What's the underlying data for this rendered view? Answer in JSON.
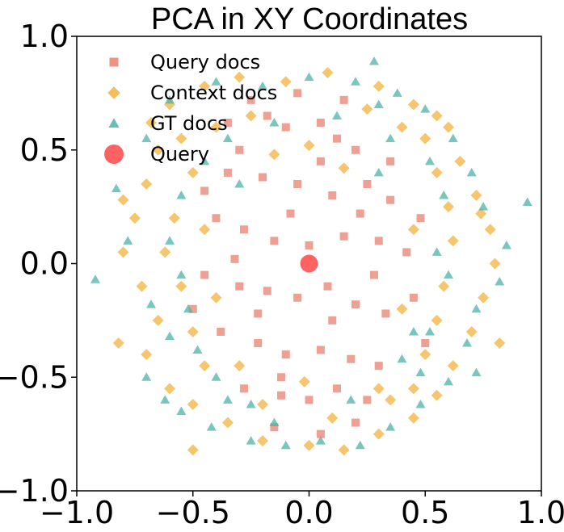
{
  "chart_data": {
    "type": "scatter",
    "title": "PCA in XY Coordinates",
    "xlabel": "",
    "ylabel": "",
    "xlim": [
      -1.0,
      1.0
    ],
    "ylim": [
      -1.0,
      1.0
    ],
    "xticks": [
      -1.0,
      -0.5,
      0.0,
      0.5,
      1.0
    ],
    "yticks": [
      1.0,
      0.5,
      0.0,
      -0.5,
      -1.0
    ],
    "xtick_labels": [
      "−1.0",
      "−0.5",
      "0.0",
      "0.5",
      "1.0"
    ],
    "ytick_labels": [
      "1.0",
      "0.5",
      "0.0",
      "−0.5",
      "−1.0"
    ],
    "grid": false,
    "legend_position": "top-left",
    "series": [
      {
        "name": "Query docs",
        "marker": "square",
        "color": "#e8806f",
        "points": [
          [
            -0.25,
            0.72
          ],
          [
            -0.18,
            0.65
          ],
          [
            -0.1,
            0.6
          ],
          [
            0.05,
            0.62
          ],
          [
            0.12,
            0.55
          ],
          [
            0.2,
            0.5
          ],
          [
            -0.3,
            0.5
          ],
          [
            -0.35,
            0.4
          ],
          [
            -0.2,
            0.38
          ],
          [
            -0.05,
            0.35
          ],
          [
            0.1,
            0.3
          ],
          [
            0.25,
            0.35
          ],
          [
            0.35,
            0.28
          ],
          [
            -0.4,
            0.2
          ],
          [
            -0.28,
            0.15
          ],
          [
            -0.15,
            0.1
          ],
          [
            0.0,
            0.08
          ],
          [
            0.15,
            0.12
          ],
          [
            0.3,
            0.1
          ],
          [
            0.42,
            0.05
          ],
          [
            -0.45,
            -0.05
          ],
          [
            -0.3,
            -0.1
          ],
          [
            -0.18,
            -0.12
          ],
          [
            -0.05,
            -0.15
          ],
          [
            0.08,
            -0.1
          ],
          [
            0.2,
            -0.18
          ],
          [
            0.33,
            -0.22
          ],
          [
            0.45,
            -0.15
          ],
          [
            -0.38,
            -0.3
          ],
          [
            -0.22,
            -0.35
          ],
          [
            -0.1,
            -0.4
          ],
          [
            0.05,
            -0.38
          ],
          [
            0.18,
            -0.42
          ],
          [
            0.3,
            -0.45
          ],
          [
            -0.28,
            -0.55
          ],
          [
            -0.12,
            -0.58
          ],
          [
            0.0,
            -0.6
          ],
          [
            0.12,
            -0.55
          ],
          [
            0.25,
            -0.6
          ],
          [
            -0.15,
            -0.72
          ],
          [
            0.05,
            -0.75
          ],
          [
            0.2,
            -0.7
          ],
          [
            -0.05,
            0.75
          ],
          [
            0.15,
            0.72
          ],
          [
            -0.45,
            0.32
          ],
          [
            0.48,
            0.2
          ],
          [
            -0.5,
            -0.2
          ],
          [
            0.5,
            -0.35
          ],
          [
            0.35,
            0.45
          ],
          [
            -0.35,
            0.62
          ],
          [
            0.1,
            -0.25
          ],
          [
            -0.08,
            0.22
          ],
          [
            0.22,
            0.22
          ],
          [
            -0.22,
            -0.22
          ],
          [
            0.28,
            -0.05
          ],
          [
            -0.32,
            0.02
          ],
          [
            0.05,
            0.45
          ],
          [
            -0.12,
            -0.5
          ]
        ]
      },
      {
        "name": "Context docs",
        "marker": "diamond",
        "color": "#f2b33d",
        "points": [
          [
            -0.6,
            0.7
          ],
          [
            -0.45,
            0.78
          ],
          [
            -0.3,
            0.82
          ],
          [
            -0.1,
            0.8
          ],
          [
            0.08,
            0.84
          ],
          [
            0.3,
            0.78
          ],
          [
            0.45,
            0.7
          ],
          [
            0.55,
            0.65
          ],
          [
            -0.65,
            0.5
          ],
          [
            -0.7,
            0.35
          ],
          [
            -0.75,
            0.2
          ],
          [
            -0.8,
            0.05
          ],
          [
            -0.72,
            -0.1
          ],
          [
            -0.65,
            -0.25
          ],
          [
            -0.7,
            -0.4
          ],
          [
            -0.6,
            -0.55
          ],
          [
            -0.5,
            -0.62
          ],
          [
            -0.35,
            -0.7
          ],
          [
            -0.2,
            -0.78
          ],
          [
            0.0,
            -0.8
          ],
          [
            0.15,
            -0.82
          ],
          [
            0.3,
            -0.75
          ],
          [
            0.45,
            -0.68
          ],
          [
            0.55,
            -0.58
          ],
          [
            0.62,
            -0.45
          ],
          [
            0.7,
            -0.3
          ],
          [
            0.75,
            -0.15
          ],
          [
            0.8,
            0.0
          ],
          [
            0.78,
            0.15
          ],
          [
            0.72,
            0.3
          ],
          [
            0.65,
            0.45
          ],
          [
            -0.55,
            0.55
          ],
          [
            -0.5,
            0.4
          ],
          [
            -0.58,
            0.2
          ],
          [
            -0.62,
            0.05
          ],
          [
            -0.55,
            -0.1
          ],
          [
            -0.5,
            -0.3
          ],
          [
            -0.45,
            -0.45
          ],
          [
            0.5,
            0.55
          ],
          [
            0.55,
            0.4
          ],
          [
            0.6,
            0.25
          ],
          [
            0.62,
            0.1
          ],
          [
            0.58,
            -0.1
          ],
          [
            0.55,
            -0.25
          ],
          [
            0.5,
            -0.4
          ],
          [
            0.45,
            -0.55
          ],
          [
            -0.4,
            0.6
          ],
          [
            0.4,
            0.6
          ],
          [
            -0.25,
            0.65
          ],
          [
            0.25,
            0.68
          ],
          [
            -0.45,
            0.15
          ],
          [
            0.45,
            0.15
          ],
          [
            -0.4,
            -0.15
          ],
          [
            0.4,
            -0.2
          ],
          [
            -0.3,
            -0.45
          ],
          [
            0.3,
            -0.55
          ],
          [
            -0.15,
            0.48
          ],
          [
            0.15,
            0.42
          ],
          [
            -0.2,
            -0.62
          ],
          [
            0.1,
            -0.68
          ],
          [
            -0.82,
            -0.35
          ],
          [
            0.82,
            -0.35
          ],
          [
            -0.5,
            -0.82
          ],
          [
            -0.8,
            0.28
          ],
          [
            0.74,
            0.22
          ],
          [
            0.35,
            -0.6
          ],
          [
            0.6,
            0.6
          ],
          [
            -0.68,
            0.62
          ],
          [
            0.0,
            0.52
          ],
          [
            -0.02,
            -0.52
          ]
        ]
      },
      {
        "name": "GT docs",
        "marker": "triangle",
        "color": "#4eb3a8",
        "points": [
          [
            -0.6,
            0.72
          ],
          [
            -0.4,
            0.8
          ],
          [
            -0.2,
            0.78
          ],
          [
            0.0,
            0.82
          ],
          [
            0.2,
            0.8
          ],
          [
            0.28,
            0.89
          ],
          [
            0.38,
            0.75
          ],
          [
            0.5,
            0.68
          ],
          [
            -0.7,
            0.55
          ],
          [
            -0.83,
            0.33
          ],
          [
            -0.78,
            0.1
          ],
          [
            -0.92,
            -0.07
          ],
          [
            -0.68,
            -0.18
          ],
          [
            -0.6,
            -0.32
          ],
          [
            -0.7,
            -0.5
          ],
          [
            -0.55,
            -0.65
          ],
          [
            -0.42,
            -0.72
          ],
          [
            -0.25,
            -0.78
          ],
          [
            -0.1,
            -0.8
          ],
          [
            0.05,
            -0.78
          ],
          [
            0.22,
            -0.8
          ],
          [
            0.35,
            -0.72
          ],
          [
            0.48,
            -0.62
          ],
          [
            0.6,
            -0.52
          ],
          [
            0.68,
            -0.35
          ],
          [
            0.72,
            -0.2
          ],
          [
            0.82,
            -0.08
          ],
          [
            0.85,
            0.08
          ],
          [
            0.75,
            0.25
          ],
          [
            0.7,
            0.4
          ],
          [
            0.94,
            0.27
          ],
          [
            -0.55,
            0.3
          ],
          [
            -0.6,
            0.1
          ],
          [
            -0.52,
            -0.2
          ],
          [
            -0.48,
            -0.38
          ],
          [
            0.52,
            0.45
          ],
          [
            0.58,
            0.3
          ],
          [
            0.55,
            0.05
          ],
          [
            0.52,
            -0.3
          ],
          [
            0.48,
            -0.48
          ],
          [
            -0.35,
            0.55
          ],
          [
            0.35,
            0.55
          ],
          [
            -0.3,
            0.35
          ],
          [
            0.3,
            0.4
          ],
          [
            -0.4,
            -0.5
          ],
          [
            0.4,
            -0.42
          ],
          [
            -0.15,
            0.62
          ],
          [
            0.12,
            0.65
          ],
          [
            -0.25,
            -0.62
          ],
          [
            0.18,
            -0.6
          ],
          [
            -0.62,
            -0.6
          ],
          [
            0.62,
            0.55
          ],
          [
            -0.45,
            0.45
          ],
          [
            0.45,
            -0.3
          ],
          [
            -0.55,
            -0.05
          ],
          [
            0.6,
            -0.05
          ],
          [
            -0.35,
            -0.6
          ],
          [
            0.3,
            0.7
          ],
          [
            0.72,
            -0.48
          ],
          [
            -0.15,
            -0.7
          ]
        ]
      },
      {
        "name": "Query",
        "marker": "circle",
        "color": "#ff3b3b",
        "points": [
          [
            0.0,
            0.0
          ]
        ]
      }
    ]
  }
}
